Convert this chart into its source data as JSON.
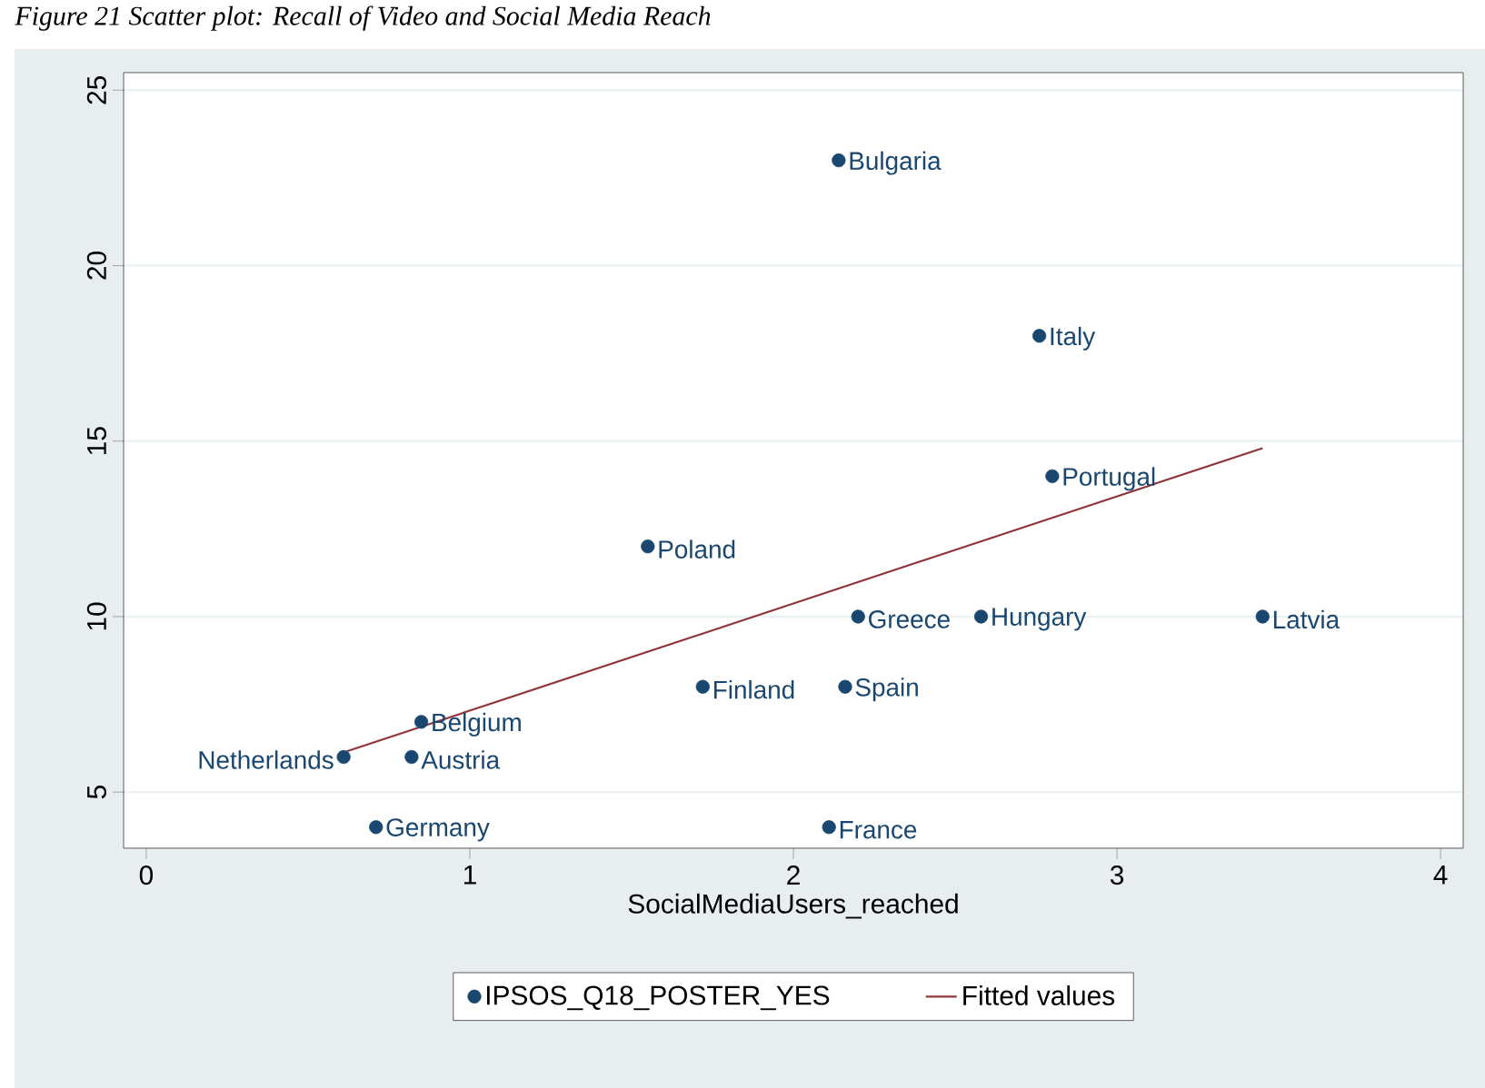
{
  "chart_data": {
    "type": "scatter",
    "title": "Figure 21 Scatter plot: Recall of Video and Social Media Reach",
    "xlabel": "SocialMediaUsers_reached",
    "xlim": [
      -0.07,
      4.07
    ],
    "ylim": [
      3.4,
      25.5
    ],
    "xticks": [
      0,
      1,
      2,
      3,
      4
    ],
    "yticks": [
      5,
      10,
      15,
      20,
      25
    ],
    "grid": "y",
    "legend": "bottom",
    "series": [
      {
        "name": "IPSOS_Q18_POSTER_YES",
        "marker": "circle",
        "color": "#1a476f",
        "x": [
          2.14,
          2.76,
          2.8,
          1.55,
          2.2,
          2.58,
          3.45,
          1.72,
          2.16,
          0.85,
          0.61,
          0.82,
          0.71,
          2.11
        ],
        "values": [
          23,
          18,
          14,
          12,
          10,
          10,
          10,
          8,
          8,
          7,
          6,
          6,
          4,
          4
        ]
      },
      {
        "name": "Fitted values",
        "type": "line",
        "color": "#90353b",
        "x": [
          0.62,
          3.45
        ],
        "values": [
          6.16,
          14.8
        ]
      }
    ],
    "annotations": [
      {
        "text": "Bulgaria",
        "x": 2.14,
        "y": 23
      },
      {
        "text": "Italy",
        "x": 2.76,
        "y": 18
      },
      {
        "text": "Portugal",
        "x": 2.8,
        "y": 14
      },
      {
        "text": "Poland",
        "x": 1.55,
        "y": 12
      },
      {
        "text": "Greece",
        "x": 2.2,
        "y": 10
      },
      {
        "text": "Hungary",
        "x": 2.58,
        "y": 10
      },
      {
        "text": "Latvia",
        "x": 3.45,
        "y": 10
      },
      {
        "text": "Finland",
        "x": 1.72,
        "y": 8
      },
      {
        "text": "Spain",
        "x": 2.16,
        "y": 8
      },
      {
        "text": "Belgium",
        "x": 0.85,
        "y": 7
      },
      {
        "text": "Netherlands",
        "x": 0.61,
        "y": 6
      },
      {
        "text": "Austria",
        "x": 0.82,
        "y": 6
      },
      {
        "text": "Germany",
        "x": 0.71,
        "y": 4
      },
      {
        "text": "France",
        "x": 2.11,
        "y": 4
      }
    ]
  }
}
